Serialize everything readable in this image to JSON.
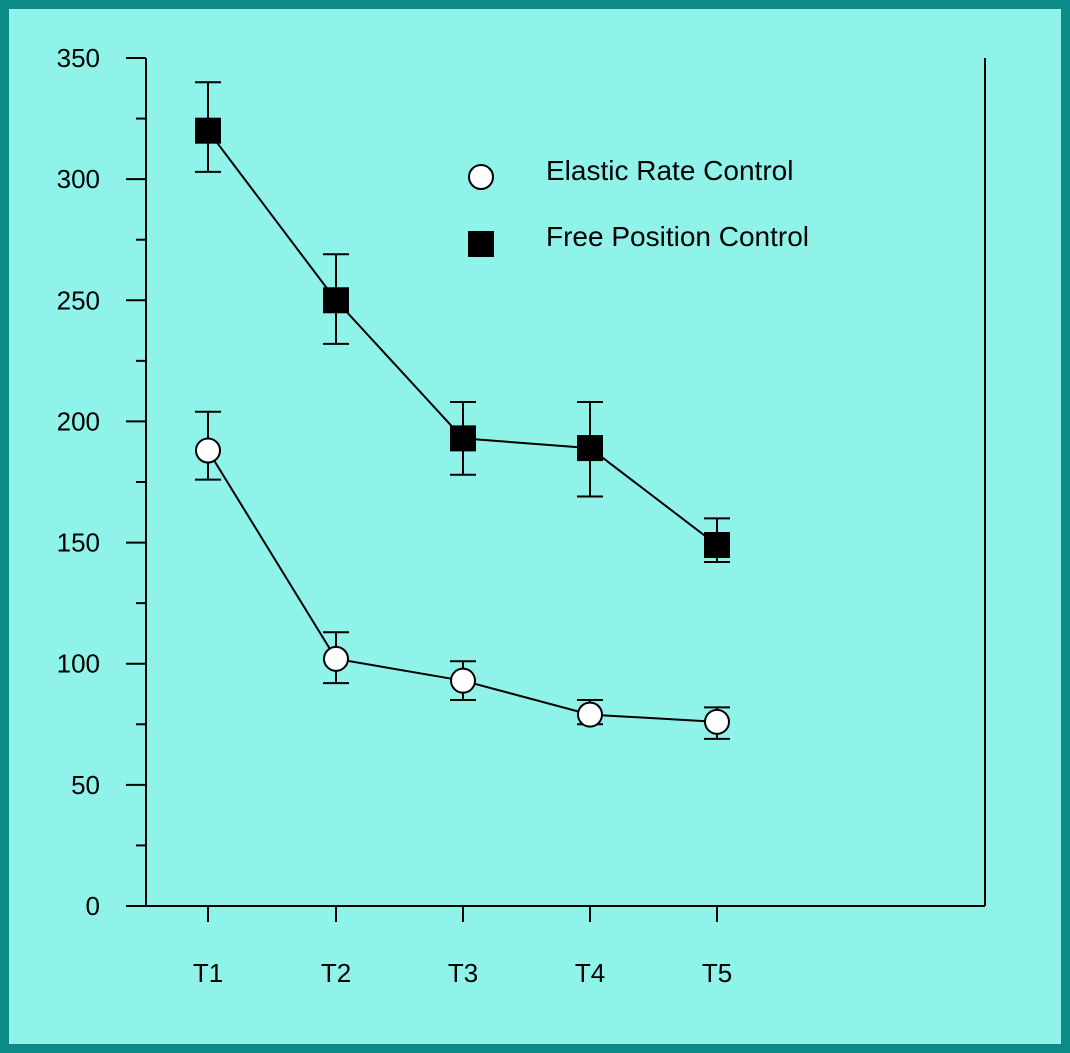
{
  "colors": {
    "background": "#8ff3e9",
    "border": "#0c8a86",
    "ink": "#000000",
    "marker_open": "#ffffff"
  },
  "chart_data": {
    "type": "line",
    "categories": [
      "T1",
      "T2",
      "T3",
      "T4",
      "T5"
    ],
    "ylim": [
      0,
      350
    ],
    "yticks": [
      0,
      50,
      100,
      150,
      200,
      250,
      300,
      350
    ],
    "ytick_labels": [
      "0",
      "50",
      "100",
      "150",
      "200",
      "250",
      "300",
      "350"
    ],
    "ylabel": "",
    "xlabel": "",
    "title": "",
    "grid": false,
    "legend": "top-right",
    "series": [
      {
        "name": "Elastic Rate Control",
        "marker": "open-circle",
        "values": [
          188,
          102,
          93,
          79,
          76
        ],
        "err_low": [
          176,
          92,
          85,
          75,
          69
        ],
        "err_high": [
          204,
          113,
          101,
          85,
          82
        ]
      },
      {
        "name": "Free Position Control",
        "marker": "filled-square",
        "values": [
          320,
          250,
          193,
          189,
          149
        ],
        "err_low": [
          303,
          232,
          178,
          169,
          142
        ],
        "err_high": [
          340,
          269,
          208,
          208,
          160
        ]
      }
    ]
  }
}
